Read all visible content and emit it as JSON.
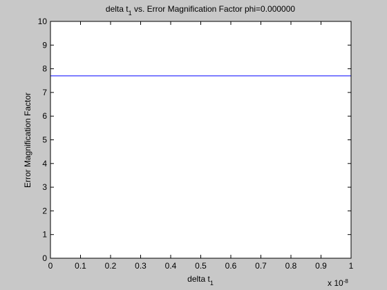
{
  "chart_data": {
    "type": "line",
    "title": {
      "prefix": "delta t",
      "subscript": "1",
      "suffix": " vs. Error Magnification Factor phi=0.000000"
    },
    "xlabel": {
      "main": "delta t",
      "subscript": "1"
    },
    "ylabel": "Error Magnification Factor",
    "x_multiplier": {
      "base": "x 10",
      "exponent": "-8"
    },
    "xlim": [
      0,
      1
    ],
    "ylim": [
      0,
      10
    ],
    "x_ticks": [
      0,
      0.1,
      0.2,
      0.3,
      0.4,
      0.5,
      0.6,
      0.7,
      0.8,
      0.9,
      1
    ],
    "x_tick_labels": [
      "0",
      "0.1",
      "0.2",
      "0.3",
      "0.4",
      "0.5",
      "0.6",
      "0.7",
      "0.8",
      "0.9",
      "1"
    ],
    "y_ticks": [
      0,
      1,
      2,
      3,
      4,
      5,
      6,
      7,
      8,
      9,
      10
    ],
    "y_tick_labels": [
      "0",
      "1",
      "2",
      "3",
      "4",
      "5",
      "6",
      "7",
      "8",
      "9",
      "10"
    ],
    "grid": false,
    "series": [
      {
        "x": [
          0,
          1
        ],
        "y": [
          7.7,
          7.7
        ],
        "color": "#0000ff"
      }
    ],
    "colors": {
      "figure_background": "#c8c8c8",
      "axes_background": "#ffffff",
      "axes_color": "#000000"
    }
  }
}
